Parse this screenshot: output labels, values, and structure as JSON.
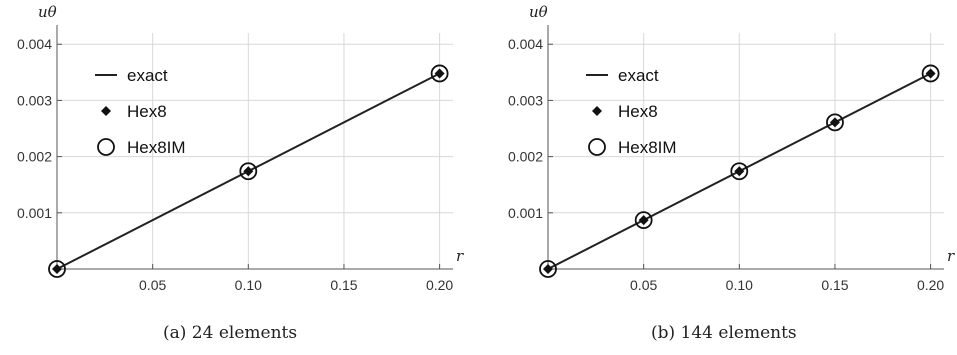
{
  "chart_data": [
    {
      "type": "line",
      "caption": "(a) 24 elements",
      "xlabel": "r",
      "ylabel": "uθ",
      "xlim": [
        0,
        0.205
      ],
      "ylim": [
        0,
        0.0042
      ],
      "xticks": [
        0.05,
        0.1,
        0.15,
        0.2
      ],
      "xtick_labels": [
        "0.05",
        "0.10",
        "0.15",
        "0.20"
      ],
      "yticks": [
        0.001,
        0.002,
        0.003,
        0.004
      ],
      "ytick_labels": [
        "0.001",
        "0.002",
        "0.003",
        "0.004"
      ],
      "grid": true,
      "legend_position": "upper-left",
      "legend": [
        "exact",
        "Hex8",
        "Hex8IM"
      ],
      "series": [
        {
          "name": "exact",
          "style": "line",
          "x": [
            0,
            0.2
          ],
          "y": [
            0,
            0.00348
          ]
        },
        {
          "name": "Hex8",
          "style": "diamond",
          "x": [
            0,
            0.1,
            0.2
          ],
          "y": [
            0,
            0.00174,
            0.00348
          ]
        },
        {
          "name": "Hex8IM",
          "style": "circle",
          "x": [
            0,
            0.1,
            0.2
          ],
          "y": [
            0,
            0.00174,
            0.00348
          ]
        }
      ]
    },
    {
      "type": "line",
      "caption": "(b) 144 elements",
      "xlabel": "r",
      "ylabel": "uθ",
      "xlim": [
        0,
        0.205
      ],
      "ylim": [
        0,
        0.0042
      ],
      "xticks": [
        0.05,
        0.1,
        0.15,
        0.2
      ],
      "xtick_labels": [
        "0.05",
        "0.10",
        "0.15",
        "0.20"
      ],
      "yticks": [
        0.001,
        0.002,
        0.003,
        0.004
      ],
      "ytick_labels": [
        "0.001",
        "0.002",
        "0.003",
        "0.004"
      ],
      "grid": true,
      "legend_position": "upper-left",
      "legend": [
        "exact",
        "Hex8",
        "Hex8IM"
      ],
      "series": [
        {
          "name": "exact",
          "style": "line",
          "x": [
            0,
            0.2
          ],
          "y": [
            0,
            0.00348
          ]
        },
        {
          "name": "Hex8",
          "style": "diamond",
          "x": [
            0,
            0.05,
            0.1,
            0.15,
            0.2
          ],
          "y": [
            0,
            0.00087,
            0.00174,
            0.00261,
            0.00348
          ]
        },
        {
          "name": "Hex8IM",
          "style": "circle",
          "x": [
            0,
            0.05,
            0.1,
            0.15,
            0.2
          ],
          "y": [
            0,
            0.00087,
            0.00174,
            0.00261,
            0.00348
          ]
        }
      ]
    }
  ]
}
